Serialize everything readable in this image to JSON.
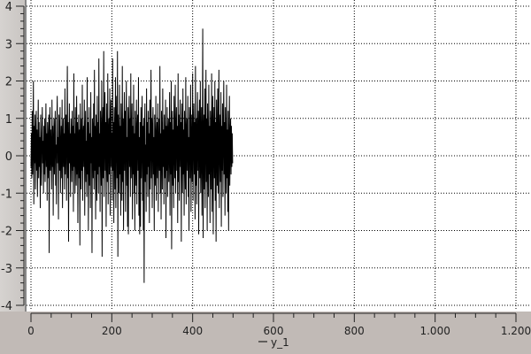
{
  "chart_data": {
    "type": "line",
    "xlabel": "",
    "ylabel": "",
    "legend": [
      {
        "name": "y_1",
        "placement": "bottom"
      }
    ],
    "xlim": [
      0,
      1200
    ],
    "ylim": [
      -4,
      4
    ],
    "x_ticks": [
      "0",
      "200",
      "400",
      "600",
      "800",
      "1.000",
      "1.200"
    ],
    "y_ticks": [
      "-4",
      "-3",
      "-2",
      "-1",
      "0",
      "1",
      "2",
      "3",
      "4"
    ],
    "grid": true,
    "line_color": "#000000",
    "x_start": 0,
    "values": [
      -0.3,
      0.6,
      -0.6,
      1.2,
      -0.5,
      0.4,
      2.0,
      -1.3,
      0.8,
      -0.2,
      1.1,
      -0.9,
      0.3,
      1.2,
      -0.4,
      0.7,
      -1.1,
      0.2,
      1.5,
      -0.6,
      0.9,
      -0.3,
      0.5,
      -1.4,
      1.1,
      0.1,
      -0.8,
      0.6,
      1.3,
      -0.2,
      0.4,
      -1.0,
      0.8,
      -0.5,
      1.0,
      -0.7,
      0.2,
      1.4,
      -0.3,
      0.6,
      -1.2,
      0.9,
      0.3,
      -0.6,
      1.1,
      -2.6,
      0.5,
      1.3,
      -0.4,
      0.7,
      0.2,
      -0.9,
      1.5,
      -0.3,
      0.8,
      -1.6,
      0.4,
      1.0,
      -0.5,
      0.6,
      1.2,
      -0.8,
      0.3,
      -1.3,
      0.9,
      1.6,
      -0.2,
      0.5,
      -1.7,
      1.1,
      0.7,
      -0.4,
      1.3,
      -1.0,
      0.2,
      0.8,
      -0.6,
      1.5,
      -1.4,
      0.4,
      1.0,
      -0.3,
      0.6,
      -0.9,
      1.8,
      -0.5,
      0.3,
      1.1,
      -1.2,
      0.7,
      2.4,
      -0.6,
      0.9,
      -2.3,
      0.4,
      1.4,
      -0.2,
      0.6,
      -1.1,
      1.0,
      0.5,
      -0.7,
      1.2,
      -0.4,
      0.8,
      -1.5,
      2.2,
      -0.3,
      0.6,
      -1.0,
      1.3,
      0.2,
      -0.8,
      1.6,
      -0.5,
      0.9,
      -1.8,
      0.4,
      1.1,
      -0.6,
      0.7,
      -2.4,
      1.4,
      0.3,
      -0.9,
      1.0,
      -0.4,
      1.9,
      -1.2,
      0.5,
      0.8,
      -0.3,
      1.5,
      -1.6,
      0.6,
      1.2,
      -0.7,
      0.4,
      -1.1,
      2.1,
      -0.5,
      0.9,
      -2.0,
      0.3,
      1.3,
      -0.8,
      0.6,
      -1.4,
      1.7,
      -0.2,
      0.5,
      -2.6,
      1.0,
      0.7,
      -0.6,
      1.4,
      -0.9,
      2.3,
      -0.4,
      0.8,
      -1.7,
      1.1,
      0.3,
      -1.2,
      1.6,
      -0.5,
      0.9,
      -1.0,
      2.6,
      -0.3,
      0.6,
      -1.5,
      1.2,
      0.4,
      -0.8,
      2.0,
      -2.7,
      0.7,
      1.3,
      -0.6,
      2.8,
      -1.1,
      0.5,
      1.7,
      -0.4,
      0.9,
      -1.9,
      1.4,
      0.2,
      -0.7,
      2.2,
      -1.3,
      0.6,
      1.0,
      -0.5,
      1.8,
      -1.6,
      0.8,
      1.5,
      -0.3,
      0.6,
      -1.2,
      2.6,
      -0.4,
      0.9,
      -1.8,
      1.3,
      0.5,
      -0.9,
      2.1,
      -1.4,
      0.7,
      1.6,
      -0.6,
      2.8,
      -2.7,
      1.1,
      0.4,
      -1.0,
      1.9,
      -0.5,
      0.8,
      -1.6,
      1.4,
      0.3,
      -1.2,
      2.4,
      -0.7,
      1.0,
      -2.0,
      0.6,
      1.7,
      -0.4,
      1.2,
      -1.5,
      0.9,
      2.0,
      -0.8,
      0.5,
      -1.9,
      1.3,
      -2.1,
      0.7,
      1.6,
      -0.3,
      1.0,
      -1.1,
      2.2,
      -0.6,
      0.4,
      1.4,
      -1.7,
      0.8,
      -0.5,
      1.9,
      -1.0,
      0.6,
      -2.0,
      1.2,
      0.3,
      -0.8,
      1.5,
      -1.3,
      0.7,
      1.1,
      -0.4,
      2.1,
      -1.6,
      0.5,
      -2.1,
      0.9,
      -1.9,
      1.3,
      -0.6,
      0.4,
      1.6,
      -1.2,
      0.8,
      -2.0,
      1.0,
      -3.4,
      0.6,
      1.4,
      -0.7,
      0.3,
      -1.5,
      1.8,
      -0.5,
      0.9,
      -1.1,
      1.2,
      -0.3,
      0.6,
      -1.8,
      1.5,
      -0.9,
      0.4,
      2.3,
      -0.6,
      1.0,
      -1.4,
      0.7,
      1.3,
      -0.5,
      0.5,
      -2.0,
      1.1,
      0.2,
      -0.8,
      1.6,
      -1.2,
      0.4,
      0.9,
      -0.6,
      1.4,
      -1.5,
      0.3,
      1.0,
      -0.4,
      2.4,
      -1.0,
      0.6,
      -1.7,
      1.2,
      0.5,
      -0.9,
      1.8,
      -0.3,
      0.7,
      -1.3,
      1.1,
      -0.6,
      0.4,
      1.5,
      -2.2,
      0.8,
      -0.4,
      1.3,
      -1.1,
      0.6,
      1.0,
      -0.7,
      0.3,
      1.7,
      -1.6,
      0.9,
      -0.5,
      2.0,
      -2.5,
      0.5,
      1.2,
      -0.8,
      0.7,
      -1.4,
      1.6,
      0.3,
      -0.6,
      1.9,
      -1.0,
      0.5,
      1.3,
      -0.4,
      0.8,
      -1.8,
      2.2,
      -0.7,
      1.1,
      -1.2,
      0.4,
      1.5,
      -0.3,
      0.9,
      -2.3,
      1.4,
      0.6,
      -1.0,
      1.8,
      -0.5,
      0.7,
      -1.6,
      1.2,
      0.3,
      -0.9,
      2.1,
      -1.3,
      0.6,
      1.0,
      -0.4,
      1.6,
      -1.1,
      0.5,
      -2.0,
      1.3,
      0.8,
      -0.6,
      1.9,
      -1.5,
      0.4,
      1.1,
      -0.7,
      2.2,
      -1.2,
      0.6,
      1.4,
      -0.5,
      0.9,
      -1.7,
      2.4,
      -0.8,
      1.0,
      -1.3,
      0.5,
      1.7,
      -0.4,
      1.2,
      -2.1,
      0.7,
      1.5,
      -0.6,
      2.0,
      -1.0,
      0.4,
      1.3,
      -1.6,
      0.8,
      3.4,
      -2.2,
      0.6,
      1.1,
      -0.9,
      1.8,
      -1.4,
      0.5,
      2.3,
      -0.7,
      1.0,
      -2.0,
      1.4,
      0.3,
      -1.1,
      1.9,
      -0.5,
      0.8,
      -1.8,
      1.2,
      0.6,
      -0.9,
      2.2,
      -1.5,
      0.4,
      1.6,
      -2.1,
      0.7,
      1.3,
      -0.6,
      2.0,
      -1.2,
      0.9,
      -2.3,
      1.5,
      0.4,
      -0.8,
      1.8,
      -1.0,
      0.6,
      2.3,
      -1.4,
      0.5,
      1.1,
      -0.7,
      1.7,
      -1.9,
      0.8,
      -0.4,
      1.4,
      -1.1,
      0.6,
      2.0,
      -0.5,
      0.9,
      -1.6,
      1.3,
      0.3,
      -1.0,
      1.9,
      -0.6,
      0.7,
      -1.5,
      1.2,
      -2.0,
      0.5,
      1.6,
      -0.8,
      0.4,
      1.0,
      -0.5,
      0.8,
      -0.3,
      0.6,
      -0.2
    ]
  }
}
